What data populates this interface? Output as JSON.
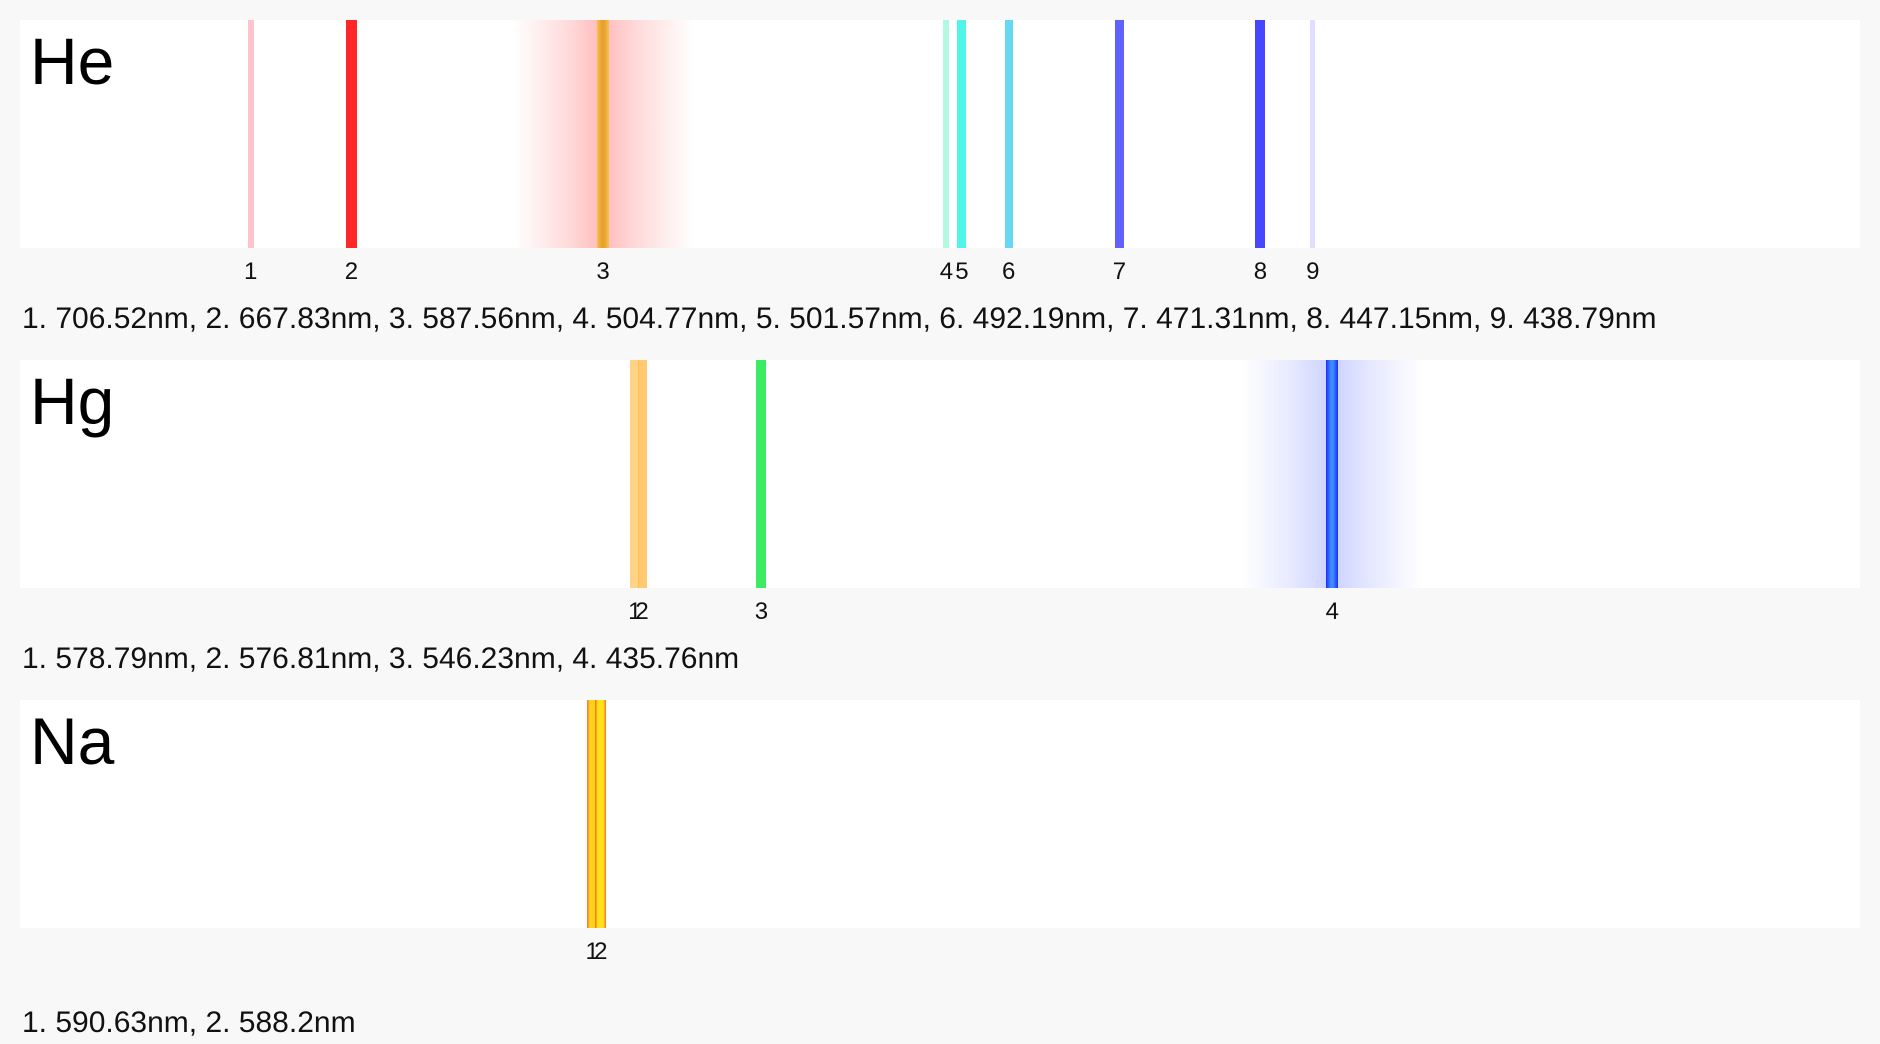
{
  "chart_data": [
    {
      "type": "spectrum",
      "element": "He",
      "units": "nm",
      "scale": "reciprocal wavelength",
      "lines": [
        {
          "label": "1",
          "wavelength": 706.52,
          "color": "#ff8aa0",
          "intensity": 0.25
        },
        {
          "label": "2",
          "wavelength": 667.83,
          "color": "#ff1010",
          "intensity": 0.85
        },
        {
          "label": "3",
          "wavelength": 587.56,
          "color": "#f5c24a",
          "intensity": 1.0,
          "core": "#e8a030",
          "glow": "#ff3b3b"
        },
        {
          "label": "4",
          "wavelength": 504.77,
          "color": "#6ff5c8",
          "intensity": 0.3
        },
        {
          "label": "5",
          "wavelength": 501.57,
          "color": "#14f0e0",
          "intensity": 0.6
        },
        {
          "label": "6",
          "wavelength": 492.19,
          "color": "#27c8f0",
          "intensity": 0.55
        },
        {
          "label": "7",
          "wavelength": 471.31,
          "color": "#2a2aff",
          "intensity": 0.6
        },
        {
          "label": "8",
          "wavelength": 447.15,
          "color": "#1a1aff",
          "intensity": 0.7
        },
        {
          "label": "9",
          "wavelength": 438.79,
          "color": "#b8b8ff",
          "intensity": 0.15
        }
      ],
      "legend": "1. 706.52nm, 2. 667.83nm, 3. 587.56nm, 4. 504.77nm, 5. 501.57nm, 6. 492.19nm, 7. 471.31nm, 8. 447.15nm, 9. 438.79nm"
    },
    {
      "type": "spectrum",
      "element": "Hg",
      "units": "nm",
      "scale": "reciprocal wavelength",
      "lines": [
        {
          "label": "1",
          "wavelength": 578.79,
          "color": "#ffc45a",
          "intensity": 0.6
        },
        {
          "label": "2",
          "wavelength": 576.81,
          "color": "#ffb840",
          "intensity": 0.6
        },
        {
          "label": "3",
          "wavelength": 546.23,
          "color": "#1ee84a",
          "intensity": 0.8
        },
        {
          "label": "4",
          "wavelength": 435.76,
          "color": "#1a2cff",
          "intensity": 1.0,
          "core": "#3d8bff",
          "glow": "#6a7aff"
        }
      ],
      "legend": "1. 578.79nm, 2. 576.81nm, 3. 546.23nm, 4. 435.76nm"
    },
    {
      "type": "spectrum",
      "element": "Na",
      "units": "nm",
      "scale": "reciprocal wavelength",
      "lines": [
        {
          "label": "1",
          "wavelength": 590.63,
          "color": "#ffd21a",
          "intensity": 0.9,
          "edge": "#ff5a1a"
        },
        {
          "label": "2",
          "wavelength": 588.2,
          "color": "#ffe21a",
          "intensity": 0.9,
          "edge": "#ff5a1a"
        }
      ],
      "legend": "1. 590.63nm, 2. 588.2nm"
    }
  ]
}
